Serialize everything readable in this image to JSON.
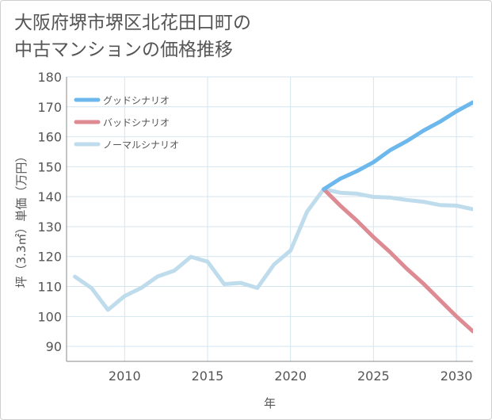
{
  "title": {
    "line1": "大阪府堺市堺区北花田口町の",
    "line2": "中古マンションの価格推移"
  },
  "chart_data": {
    "type": "line",
    "title": "大阪府堺市堺区北花田口町の中古マンションの価格推移",
    "xlabel": "年",
    "ylabel": "坪（3.3㎡）単価（万円）",
    "xlim": [
      2006.5,
      2031
    ],
    "ylim": [
      85,
      180
    ],
    "xticks": [
      2010,
      2015,
      2020,
      2025,
      2030
    ],
    "yticks": [
      90,
      100,
      110,
      120,
      130,
      140,
      150,
      160,
      170,
      180
    ],
    "grid": true,
    "legend_position": "top-left",
    "series": [
      {
        "name": "グッドシナリオ",
        "color": "#6cb8ec",
        "x": [
          2022,
          2023,
          2024,
          2025,
          2026,
          2027,
          2028,
          2029,
          2030,
          2031
        ],
        "values": [
          142.5,
          146,
          148.5,
          151.5,
          155.5,
          158.5,
          162,
          165,
          168.5,
          171.5
        ]
      },
      {
        "name": "バッドシナリオ",
        "color": "#de8a92",
        "x": [
          2022,
          2023,
          2024,
          2025,
          2026,
          2027,
          2028,
          2029,
          2030,
          2031
        ],
        "values": [
          142.5,
          137,
          132,
          126.5,
          121.5,
          116,
          111,
          105.5,
          100,
          95
        ]
      },
      {
        "name": "ノーマルシナリオ",
        "color": "#bfdcec",
        "x": [
          2007,
          2008,
          2009,
          2010,
          2011,
          2012,
          2013,
          2014,
          2015,
          2016,
          2017,
          2018,
          2019,
          2020,
          2021,
          2022,
          2023,
          2024,
          2025,
          2026,
          2027,
          2028,
          2029,
          2030,
          2031
        ],
        "values": [
          113.3,
          109.5,
          102.2,
          106.8,
          109.5,
          113.4,
          115.3,
          119.9,
          118.3,
          110.8,
          111.2,
          109.5,
          117.3,
          122,
          135,
          142.5,
          141.3,
          141,
          139.9,
          139.7,
          138.9,
          138.3,
          137.2,
          137,
          135.8
        ]
      }
    ]
  }
}
